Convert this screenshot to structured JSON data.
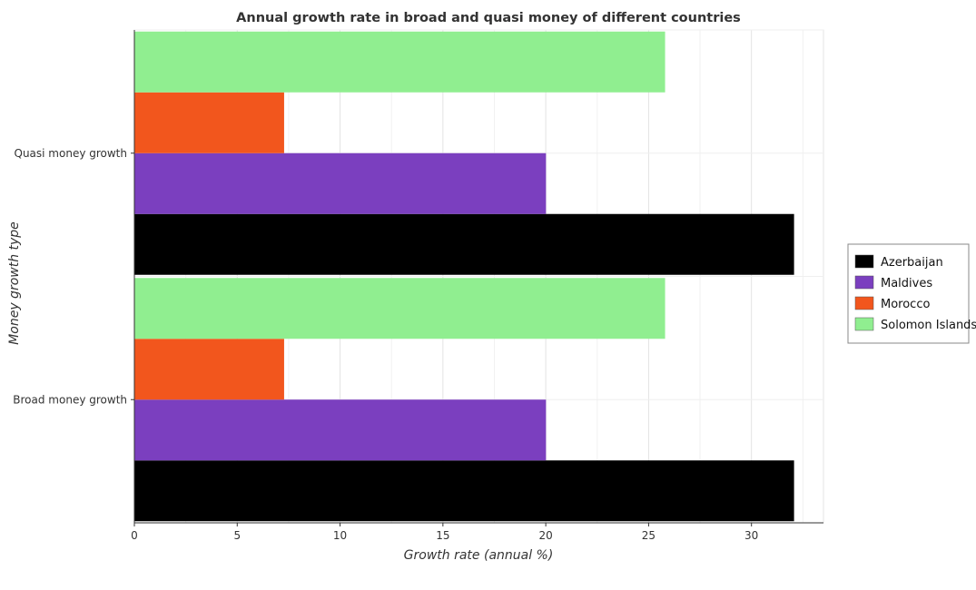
{
  "chart_data": {
    "type": "bar",
    "orientation": "horizontal",
    "title": "Annual growth rate in broad and quasi money of different countries",
    "xlabel": "Growth rate (annual %)",
    "ylabel": "Money growth type",
    "categories": [
      "Quasi money growth",
      "Broad money growth"
    ],
    "xlim": [
      0,
      33.5
    ],
    "xticks": [
      0,
      5,
      10,
      15,
      20,
      25,
      30
    ],
    "grid": true,
    "legend_position": "right",
    "series": [
      {
        "name": "Azerbaijan",
        "color": "#000000",
        "values": [
          32.07,
          32.07
        ]
      },
      {
        "name": "Maldives",
        "color": "#7b3fbf",
        "values": [
          20.01,
          20.01
        ]
      },
      {
        "name": "Morocco",
        "color": "#f2561d",
        "values": [
          7.28,
          7.28
        ]
      },
      {
        "name": "Solomon Islands",
        "color": "#90ee90",
        "values": [
          25.8,
          25.8
        ]
      }
    ]
  }
}
